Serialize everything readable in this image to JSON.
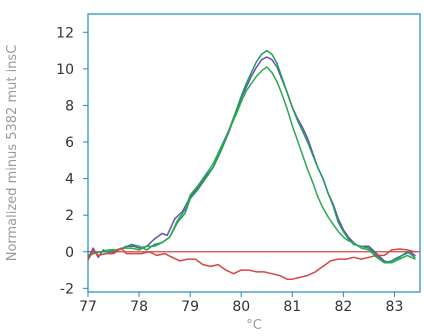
{
  "chart_data": {
    "type": "line",
    "xlabel": "°C",
    "ylabel": "Normalized minus 5382 mut insC",
    "xlim": [
      77,
      83.5
    ],
    "ylim": [
      -2.2,
      13
    ],
    "x_ticks": [
      77,
      78,
      79,
      80,
      81,
      82,
      83
    ],
    "y_ticks": [
      -2,
      0,
      2,
      4,
      6,
      8,
      10,
      12
    ],
    "x_tick_labels": [
      "77",
      "78",
      "79",
      "80",
      "81",
      "82",
      "83"
    ],
    "y_tick_labels": [
      "-2",
      "0",
      "2",
      "4",
      "6",
      "8",
      "10",
      "12"
    ],
    "reference_line": {
      "y": 0,
      "color": "#d64545"
    },
    "grid": false,
    "series": [
      {
        "color": "#6a4fb3",
        "points": [
          [
            76.97,
            -0.6
          ],
          [
            77.1,
            0.2
          ],
          [
            77.2,
            -0.3
          ],
          [
            77.3,
            0.1
          ],
          [
            77.45,
            -0.1
          ],
          [
            77.6,
            0.1
          ],
          [
            77.75,
            0.3
          ],
          [
            77.9,
            0.3
          ],
          [
            78.0,
            0.2
          ],
          [
            78.15,
            0.3
          ],
          [
            78.3,
            0.7
          ],
          [
            78.45,
            1.0
          ],
          [
            78.55,
            0.9
          ],
          [
            78.7,
            1.8
          ],
          [
            78.85,
            2.2
          ],
          [
            79.0,
            3.0
          ],
          [
            79.15,
            3.5
          ],
          [
            79.3,
            4.1
          ],
          [
            79.45,
            4.6
          ],
          [
            79.6,
            5.5
          ],
          [
            79.75,
            6.5
          ],
          [
            79.9,
            7.6
          ],
          [
            80.0,
            8.4
          ],
          [
            80.1,
            9.0
          ],
          [
            80.2,
            9.6
          ],
          [
            80.3,
            10.1
          ],
          [
            80.4,
            10.5
          ],
          [
            80.5,
            10.65
          ],
          [
            80.6,
            10.5
          ],
          [
            80.7,
            10.1
          ],
          [
            80.8,
            9.4
          ],
          [
            80.9,
            8.7
          ],
          [
            81.0,
            7.9
          ],
          [
            81.1,
            7.3
          ],
          [
            81.2,
            6.8
          ],
          [
            81.3,
            6.2
          ],
          [
            81.4,
            5.4
          ],
          [
            81.5,
            4.6
          ],
          [
            81.6,
            4.0
          ],
          [
            81.7,
            3.2
          ],
          [
            81.8,
            2.6
          ],
          [
            81.9,
            1.8
          ],
          [
            82.0,
            1.2
          ],
          [
            82.1,
            0.8
          ],
          [
            82.2,
            0.5
          ],
          [
            82.3,
            0.3
          ],
          [
            82.5,
            0.3
          ],
          [
            82.65,
            -0.1
          ],
          [
            82.8,
            -0.5
          ],
          [
            82.9,
            -0.6
          ],
          [
            83.0,
            -0.4
          ],
          [
            83.15,
            -0.2
          ],
          [
            83.3,
            0.0
          ],
          [
            83.4,
            -0.2
          ]
        ]
      },
      {
        "color": "#1f9e5a",
        "points": [
          [
            76.97,
            -0.3
          ],
          [
            77.1,
            -0.1
          ],
          [
            77.25,
            0.0
          ],
          [
            77.4,
            0.0
          ],
          [
            77.55,
            0.1
          ],
          [
            77.7,
            0.2
          ],
          [
            77.85,
            0.4
          ],
          [
            78.0,
            0.3
          ],
          [
            78.15,
            0.1
          ],
          [
            78.3,
            0.4
          ],
          [
            78.45,
            0.5
          ],
          [
            78.6,
            0.8
          ],
          [
            78.75,
            1.6
          ],
          [
            78.9,
            2.1
          ],
          [
            79.0,
            2.9
          ],
          [
            79.15,
            3.4
          ],
          [
            79.3,
            4.0
          ],
          [
            79.45,
            4.6
          ],
          [
            79.6,
            5.5
          ],
          [
            79.75,
            6.6
          ],
          [
            79.9,
            7.7
          ],
          [
            80.0,
            8.5
          ],
          [
            80.1,
            9.2
          ],
          [
            80.2,
            9.8
          ],
          [
            80.3,
            10.4
          ],
          [
            80.4,
            10.8
          ],
          [
            80.5,
            11.0
          ],
          [
            80.6,
            10.8
          ],
          [
            80.7,
            10.3
          ],
          [
            80.8,
            9.5
          ],
          [
            80.9,
            8.7
          ],
          [
            81.0,
            7.9
          ],
          [
            81.1,
            7.2
          ],
          [
            81.2,
            6.6
          ],
          [
            81.3,
            6.0
          ],
          [
            81.4,
            5.3
          ],
          [
            81.5,
            4.6
          ],
          [
            81.6,
            4.0
          ],
          [
            81.7,
            3.2
          ],
          [
            81.8,
            2.5
          ],
          [
            81.9,
            1.6
          ],
          [
            82.0,
            1.1
          ],
          [
            82.1,
            0.7
          ],
          [
            82.2,
            0.4
          ],
          [
            82.35,
            0.3
          ],
          [
            82.5,
            0.2
          ],
          [
            82.65,
            -0.2
          ],
          [
            82.8,
            -0.6
          ],
          [
            82.95,
            -0.5
          ],
          [
            83.1,
            -0.3
          ],
          [
            83.25,
            0.0
          ],
          [
            83.4,
            -0.3
          ]
        ]
      },
      {
        "color": "#2aa84f",
        "points": [
          [
            76.97,
            -0.2
          ],
          [
            77.1,
            -0.1
          ],
          [
            77.25,
            0.0
          ],
          [
            77.4,
            0.1
          ],
          [
            77.55,
            0.1
          ],
          [
            77.7,
            0.2
          ],
          [
            77.85,
            0.2
          ],
          [
            78.0,
            0.1
          ],
          [
            78.15,
            0.3
          ],
          [
            78.3,
            0.3
          ],
          [
            78.45,
            0.5
          ],
          [
            78.6,
            0.8
          ],
          [
            78.75,
            1.7
          ],
          [
            78.9,
            2.3
          ],
          [
            79.0,
            3.1
          ],
          [
            79.15,
            3.6
          ],
          [
            79.3,
            4.2
          ],
          [
            79.45,
            4.8
          ],
          [
            79.6,
            5.7
          ],
          [
            79.75,
            6.6
          ],
          [
            79.9,
            7.5
          ],
          [
            80.0,
            8.2
          ],
          [
            80.1,
            8.8
          ],
          [
            80.2,
            9.2
          ],
          [
            80.3,
            9.6
          ],
          [
            80.4,
            9.9
          ],
          [
            80.5,
            10.1
          ],
          [
            80.6,
            9.8
          ],
          [
            80.7,
            9.3
          ],
          [
            80.8,
            8.6
          ],
          [
            80.9,
            7.8
          ],
          [
            81.0,
            6.9
          ],
          [
            81.1,
            6.1
          ],
          [
            81.2,
            5.3
          ],
          [
            81.3,
            4.5
          ],
          [
            81.4,
            3.8
          ],
          [
            81.5,
            3.0
          ],
          [
            81.6,
            2.4
          ],
          [
            81.7,
            1.9
          ],
          [
            81.8,
            1.5
          ],
          [
            81.9,
            1.1
          ],
          [
            82.0,
            0.8
          ],
          [
            82.1,
            0.6
          ],
          [
            82.2,
            0.5
          ],
          [
            82.35,
            0.2
          ],
          [
            82.5,
            0.1
          ],
          [
            82.65,
            -0.3
          ],
          [
            82.8,
            -0.6
          ],
          [
            82.95,
            -0.6
          ],
          [
            83.1,
            -0.4
          ],
          [
            83.25,
            -0.2
          ],
          [
            83.4,
            -0.4
          ]
        ]
      },
      {
        "color": "#d64545",
        "points": [
          [
            76.97,
            -0.6
          ],
          [
            77.1,
            0.05
          ],
          [
            77.2,
            -0.2
          ],
          [
            77.35,
            -0.1
          ],
          [
            77.5,
            -0.1
          ],
          [
            77.65,
            0.2
          ],
          [
            77.75,
            -0.1
          ],
          [
            77.9,
            -0.1
          ],
          [
            78.05,
            -0.1
          ],
          [
            78.2,
            0.0
          ],
          [
            78.35,
            -0.2
          ],
          [
            78.5,
            -0.1
          ],
          [
            78.65,
            -0.3
          ],
          [
            78.8,
            -0.5
          ],
          [
            78.95,
            -0.4
          ],
          [
            79.1,
            -0.4
          ],
          [
            79.25,
            -0.7
          ],
          [
            79.4,
            -0.8
          ],
          [
            79.55,
            -0.7
          ],
          [
            79.7,
            -1.0
          ],
          [
            79.85,
            -1.2
          ],
          [
            80.0,
            -1.0
          ],
          [
            80.15,
            -1.0
          ],
          [
            80.3,
            -1.1
          ],
          [
            80.45,
            -1.1
          ],
          [
            80.6,
            -1.2
          ],
          [
            80.75,
            -1.3
          ],
          [
            80.9,
            -1.5
          ],
          [
            81.0,
            -1.5
          ],
          [
            81.15,
            -1.4
          ],
          [
            81.3,
            -1.3
          ],
          [
            81.45,
            -1.1
          ],
          [
            81.6,
            -0.8
          ],
          [
            81.75,
            -0.5
          ],
          [
            81.9,
            -0.4
          ],
          [
            82.05,
            -0.4
          ],
          [
            82.2,
            -0.3
          ],
          [
            82.35,
            -0.4
          ],
          [
            82.5,
            -0.3
          ],
          [
            82.65,
            -0.2
          ],
          [
            82.8,
            -0.2
          ],
          [
            82.95,
            0.1
          ],
          [
            83.1,
            0.15
          ],
          [
            83.25,
            0.1
          ],
          [
            83.4,
            0.0
          ]
        ]
      }
    ]
  }
}
